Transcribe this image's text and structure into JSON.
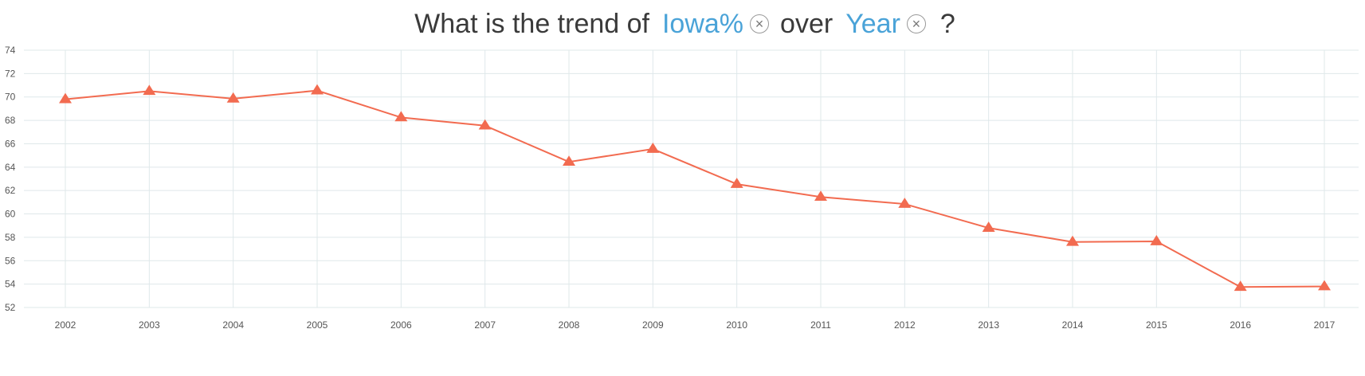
{
  "question": {
    "prefix": "What is the trend of",
    "field1": "Iowa%",
    "connector": "over",
    "field2": "Year",
    "suffix": "?",
    "field1_close_icon": "circled-x-icon",
    "field2_close_icon": "circled-x-icon"
  },
  "chart_data": {
    "type": "line",
    "title": "",
    "xlabel": "",
    "ylabel": "",
    "categories": [
      "2002",
      "2003",
      "2004",
      "2005",
      "2006",
      "2007",
      "2008",
      "2009",
      "2010",
      "2011",
      "2012",
      "2013",
      "2014",
      "2015",
      "2016",
      "2017"
    ],
    "series": [
      {
        "values": [
          69.8,
          70.5,
          69.85,
          70.55,
          68.25,
          67.55,
          64.45,
          65.55,
          62.55,
          61.45,
          60.85,
          58.8,
          57.6,
          57.65,
          53.75,
          53.8
        ],
        "color": "#f26b50",
        "marker": "triangle"
      }
    ],
    "ylim": [
      52,
      74
    ],
    "yticks": [
      "52",
      "54",
      "56",
      "58",
      "60",
      "62",
      "64",
      "66",
      "68",
      "70",
      "72",
      "74"
    ],
    "grid": true,
    "grid_color": "#dfe8ea",
    "legend": "none"
  }
}
